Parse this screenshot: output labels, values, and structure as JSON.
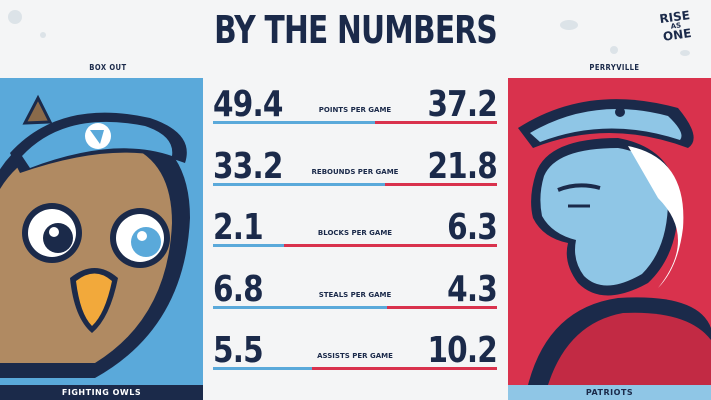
{
  "header": {
    "title": "BY THE NUMBERS"
  },
  "brand": {
    "line1": "RISE",
    "line2": "AS",
    "line3": "ONE"
  },
  "teams": {
    "left": {
      "top_label": "BOX OUT",
      "bottom_label": "FIGHTING OWLS",
      "color": "#5aa9da",
      "mascot": "owl-mascot"
    },
    "right": {
      "top_label": "PERRYVILLE",
      "bottom_label": "PATRIOTS",
      "color": "#d9324d",
      "mascot": "patriot-mascot"
    }
  },
  "stats": [
    {
      "label": "POINTS PER GAME",
      "left": "49.4",
      "right": "37.2",
      "left_num": 49.4,
      "right_num": 37.2
    },
    {
      "label": "REBOUNDS PER GAME",
      "left": "33.2",
      "right": "21.8",
      "left_num": 33.2,
      "right_num": 21.8
    },
    {
      "label": "BLOCKS PER GAME",
      "left": "2.1",
      "right": "6.3",
      "left_num": 2.1,
      "right_num": 6.3
    },
    {
      "label": "STEALS PER GAME",
      "left": "6.8",
      "right": "4.3",
      "left_num": 6.8,
      "right_num": 4.3
    },
    {
      "label": "ASSISTS PER GAME",
      "left": "5.5",
      "right": "10.2",
      "left_num": 5.5,
      "right_num": 10.2
    }
  ]
}
